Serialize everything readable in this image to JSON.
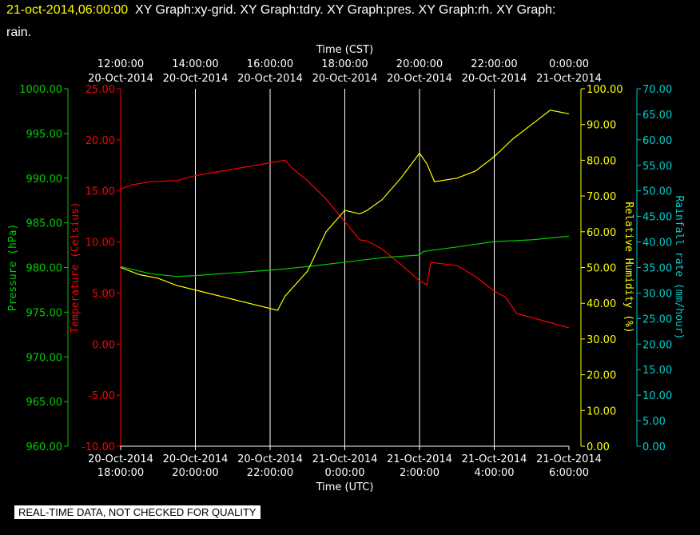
{
  "header": {
    "datetime": "21-oct-2014,06:00:00",
    "graphs_line1": "XY Graph:xy-grid.  XY Graph:tdry.  XY Graph:pres.  XY Graph:rh.  XY Graph:",
    "graphs_line2": "rain."
  },
  "footer": {
    "disclaimer": "REAL-TIME DATA, NOT CHECKED FOR QUALITY"
  },
  "colors": {
    "background": "#000000",
    "grid": "#ffffff",
    "pressure": "#00cc00",
    "temperature": "#ff0000",
    "humidity": "#ffff00",
    "rain": "#00cccc",
    "title_date": "#ffff00"
  },
  "chart_data": {
    "type": "line",
    "grid": true,
    "x_top": {
      "label": "Time (CST)",
      "ticks": [
        {
          "t": 0,
          "time": "12:00:00",
          "date": "20-Oct-2014"
        },
        {
          "t": 2,
          "time": "14:00:00",
          "date": "20-Oct-2014"
        },
        {
          "t": 4,
          "time": "16:00:00",
          "date": "20-Oct-2014"
        },
        {
          "t": 6,
          "time": "18:00:00",
          "date": "20-Oct-2014"
        },
        {
          "t": 8,
          "time": "20:00:00",
          "date": "20-Oct-2014"
        },
        {
          "t": 10,
          "time": "22:00:00",
          "date": "20-Oct-2014"
        },
        {
          "t": 12,
          "time": "0:00:00",
          "date": "21-Oct-2014"
        }
      ]
    },
    "x_bottom": {
      "label": "Time (UTC)",
      "ticks": [
        {
          "t": 0,
          "date": "20-Oct-2014",
          "time": "18:00:00"
        },
        {
          "t": 2,
          "date": "20-Oct-2014",
          "time": "20:00:00"
        },
        {
          "t": 4,
          "date": "20-Oct-2014",
          "time": "22:00:00"
        },
        {
          "t": 6,
          "date": "21-Oct-2014",
          "time": "0:00:00"
        },
        {
          "t": 8,
          "date": "21-Oct-2014",
          "time": "2:00:00"
        },
        {
          "t": 10,
          "date": "21-Oct-2014",
          "time": "4:00:00"
        },
        {
          "t": 12,
          "date": "21-Oct-2014",
          "time": "6:00:00"
        }
      ]
    },
    "y_axes": {
      "pressure": {
        "label": "Pressure (hPa)",
        "ylim": [
          960,
          1000
        ],
        "ticks": [
          "960.00",
          "965.00",
          "970.00",
          "975.00",
          "980.00",
          "985.00",
          "990.00",
          "995.00",
          "1000.00"
        ]
      },
      "temperature": {
        "label": "Temperature (Celsius)",
        "ylim": [
          -10,
          25
        ],
        "ticks": [
          "-10.00",
          "-5.00",
          "0.00",
          "5.00",
          "10.00",
          "15.00",
          "20.00",
          "25.00"
        ]
      },
      "humidity": {
        "label": "Relative Humidity (%)",
        "ylim": [
          0,
          100
        ],
        "ticks": [
          "0.00",
          "10.00",
          "20.00",
          "30.00",
          "40.00",
          "50.00",
          "60.00",
          "70.00",
          "80.00",
          "90.00",
          "100.00"
        ]
      },
      "rain": {
        "label": "Rainfall rate (mm/hour)",
        "ylim": [
          0,
          70
        ],
        "ticks": [
          "0.00",
          "5.00",
          "10.00",
          "15.00",
          "20.00",
          "25.00",
          "30.00",
          "35.00",
          "40.00",
          "45.00",
          "50.00",
          "55.00",
          "60.00",
          "65.00",
          "70.00"
        ]
      }
    },
    "series": [
      {
        "key": "temperature",
        "axis": "temperature",
        "x": [
          0,
          0.3,
          0.8,
          1.5,
          2.0,
          4.4,
          4.6,
          5.0,
          5.5,
          6.0,
          6.4,
          6.6,
          7.0,
          7.5,
          8.0,
          8.2,
          8.3,
          9.0,
          9.5,
          10.0,
          10.3,
          10.6,
          11.0,
          11.5,
          12.0
        ],
        "y": [
          15.2,
          15.6,
          15.9,
          16.0,
          16.5,
          18.0,
          17.2,
          16.0,
          14.2,
          12.0,
          10.2,
          10.1,
          9.3,
          7.8,
          6.2,
          5.8,
          8.0,
          7.7,
          6.6,
          5.2,
          4.6,
          3.0,
          2.6,
          2.1,
          1.6
        ]
      },
      {
        "key": "pressure",
        "axis": "pressure",
        "x": [
          0,
          0.8,
          1.5,
          2.0,
          3.0,
          4.0,
          5.0,
          6.0,
          7.0,
          8.0,
          8.1,
          9.0,
          10.0,
          11.0,
          12.0
        ],
        "y": [
          980.1,
          979.3,
          979.0,
          979.1,
          979.4,
          979.7,
          980.1,
          980.6,
          981.1,
          981.4,
          981.8,
          982.3,
          982.9,
          983.1,
          983.5
        ]
      },
      {
        "key": "humidity",
        "axis": "humidity",
        "x": [
          0,
          0.5,
          1.0,
          1.5,
          4.2,
          4.4,
          5.0,
          5.5,
          6.0,
          6.4,
          6.6,
          7.0,
          7.5,
          8.0,
          8.2,
          8.4,
          9.0,
          9.5,
          10.0,
          10.5,
          11.0,
          11.5,
          12.0
        ],
        "y": [
          50,
          48,
          47,
          45,
          38,
          42,
          49,
          60,
          66,
          65,
          66,
          69,
          75,
          82,
          79,
          74,
          75,
          77,
          81,
          86,
          90,
          94,
          93
        ]
      }
    ]
  }
}
